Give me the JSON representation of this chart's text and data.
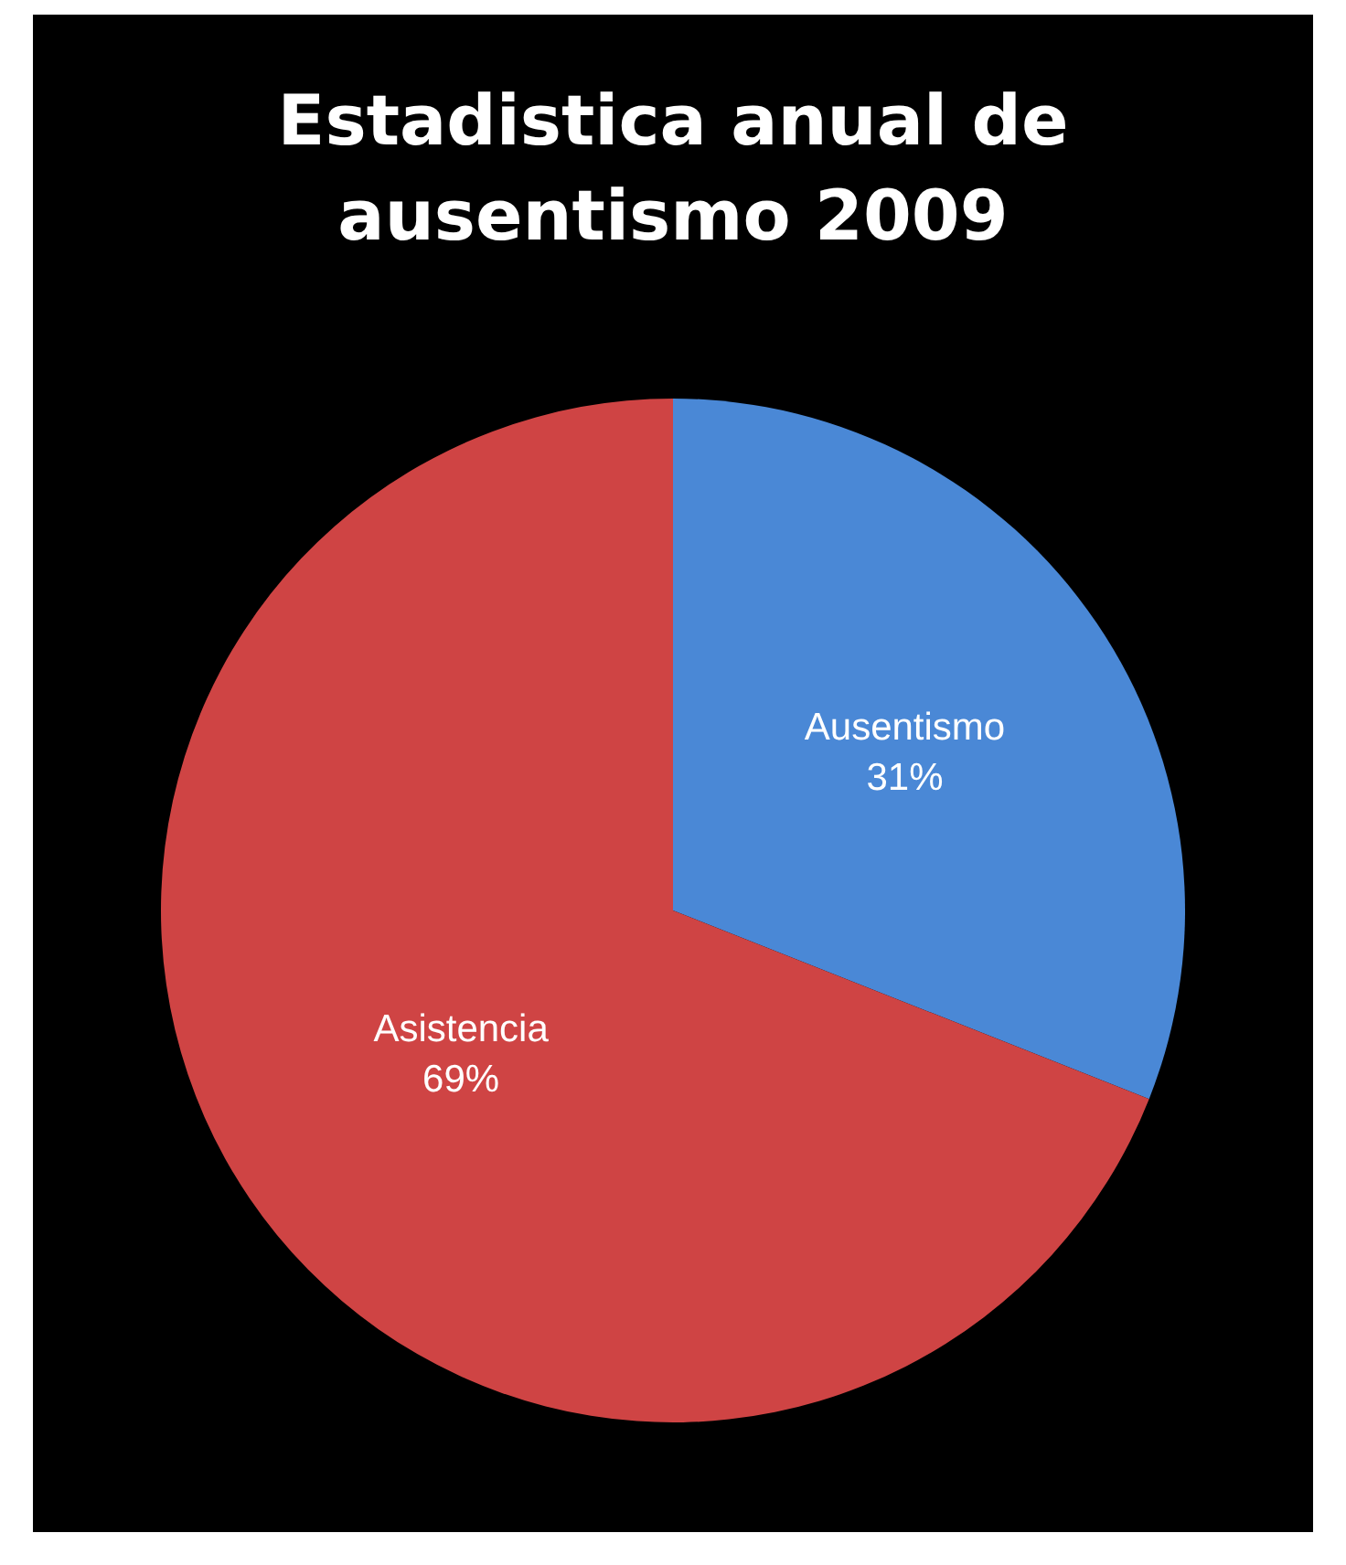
{
  "chart_data": {
    "type": "pie",
    "title": "Estadistica anual de ausentismo 2009",
    "categories": [
      "Ausentismo",
      "Asistencia"
    ],
    "values": [
      31,
      69
    ],
    "value_labels": [
      "31%",
      "69%"
    ],
    "colors": [
      "#4a88d6",
      "#cf4444"
    ],
    "legend": false
  }
}
